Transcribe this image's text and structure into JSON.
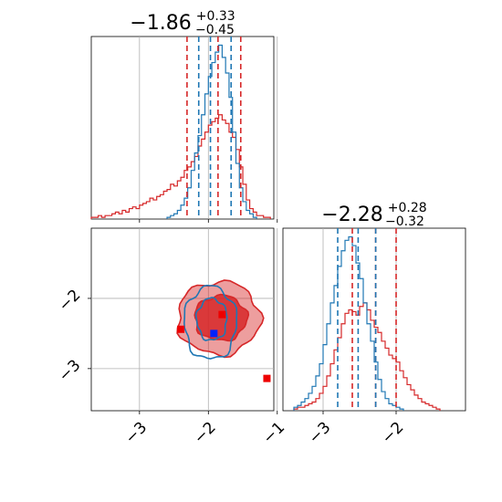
{
  "chart_data": [
    {
      "type": "histogram",
      "panel": "top-left",
      "title": {
        "value": "−1.86",
        "plus": "+0.33",
        "minus": "−0.45"
      },
      "xlim": [
        -3.7,
        -1.05
      ],
      "grid": true,
      "colors": {
        "red": "#d62728",
        "blue": "#1f77b4"
      },
      "vlines": {
        "red": [
          -2.31,
          -1.86,
          -1.53
        ],
        "blue": [
          -2.14,
          -1.97,
          -1.67
        ]
      },
      "series": [
        {
          "color": "red",
          "bins": [
            -3.7,
            -3.65,
            -3.6,
            -3.55,
            -3.5,
            -3.45,
            -3.4,
            -3.35,
            -3.3,
            -3.25,
            -3.2,
            -3.15,
            -3.1,
            -3.05,
            -3.0,
            -2.95,
            -2.9,
            -2.85,
            -2.8,
            -2.75,
            -2.7,
            -2.65,
            -2.6,
            -2.55,
            -2.5,
            -2.45,
            -2.4,
            -2.35,
            -2.3,
            -2.25,
            -2.2,
            -2.15,
            -2.1,
            -2.05,
            -2.0,
            -1.95,
            -1.9,
            -1.85,
            -1.8,
            -1.75,
            -1.7,
            -1.65,
            -1.6,
            -1.55,
            -1.5,
            -1.45,
            -1.4,
            -1.35,
            -1.3,
            -1.25,
            -1.2,
            -1.15,
            -1.1
          ],
          "counts": [
            0.01,
            0.01,
            0.02,
            0.01,
            0.02,
            0.02,
            0.03,
            0.04,
            0.03,
            0.05,
            0.04,
            0.06,
            0.07,
            0.06,
            0.08,
            0.09,
            0.1,
            0.12,
            0.11,
            0.13,
            0.14,
            0.16,
            0.17,
            0.2,
            0.19,
            0.22,
            0.24,
            0.28,
            0.3,
            0.33,
            0.36,
            0.42,
            0.46,
            0.5,
            0.54,
            0.56,
            0.58,
            0.6,
            0.57,
            0.55,
            0.5,
            0.47,
            0.4,
            0.3,
            0.2,
            0.11,
            0.06,
            0.04,
            0.02,
            0.02,
            0.01,
            0.01
          ]
        },
        {
          "color": "blue",
          "bins": [
            -2.6,
            -2.55,
            -2.5,
            -2.45,
            -2.4,
            -2.35,
            -2.3,
            -2.25,
            -2.2,
            -2.15,
            -2.1,
            -2.05,
            -2.0,
            -1.95,
            -1.9,
            -1.85,
            -1.8,
            -1.75,
            -1.7,
            -1.65,
            -1.6,
            -1.55,
            -1.5,
            -1.45,
            -1.4,
            -1.35,
            -1.3
          ],
          "counts": [
            0.01,
            0.02,
            0.03,
            0.05,
            0.08,
            0.12,
            0.18,
            0.28,
            0.38,
            0.48,
            0.6,
            0.72,
            0.82,
            0.9,
            0.96,
            1.0,
            0.93,
            0.84,
            0.7,
            0.5,
            0.32,
            0.18,
            0.1,
            0.05,
            0.03,
            0.01
          ]
        }
      ]
    },
    {
      "type": "contour",
      "panel": "bottom-left",
      "xlim": [
        -3.7,
        -1.05
      ],
      "ylim": [
        -3.6,
        -1.0
      ],
      "xticks": [
        -3,
        -2,
        -1
      ],
      "yticks": [
        -2,
        -3
      ],
      "grid": true,
      "contours": [
        {
          "color": "red",
          "filled": true,
          "level": "outer",
          "cx": -1.85,
          "cy": -2.28,
          "rx": 0.6,
          "ry": 0.52
        },
        {
          "color": "red",
          "filled": true,
          "level": "inner",
          "cx": -1.82,
          "cy": -2.28,
          "rx": 0.38,
          "ry": 0.32
        },
        {
          "color": "blue",
          "filled": false,
          "level": "outer",
          "cx": -1.97,
          "cy": -2.35,
          "rx": 0.38,
          "ry": 0.52
        },
        {
          "color": "blue",
          "filled": false,
          "level": "inner",
          "cx": -1.95,
          "cy": -2.3,
          "rx": 0.22,
          "ry": 0.3
        }
      ],
      "points": [
        {
          "color": "red",
          "x": -2.4,
          "y": -2.44
        },
        {
          "color": "red",
          "x": -1.8,
          "y": -2.23
        },
        {
          "color": "red",
          "x": -1.15,
          "y": -3.14
        },
        {
          "color": "blue",
          "x": -1.92,
          "y": -2.5
        }
      ]
    },
    {
      "type": "histogram",
      "panel": "bottom-right",
      "title": {
        "value": "−2.28",
        "plus": "+0.28",
        "minus": "−0.32"
      },
      "xlim": [
        -3.55,
        -1.05
      ],
      "xticks": [
        -3,
        -2
      ],
      "grid": true,
      "vlines": {
        "red": [
          -2.6,
          -2.28,
          -2.0
        ],
        "blue": [
          -2.8,
          -2.52,
          -2.28
        ]
      },
      "series": [
        {
          "color": "red",
          "bins": [
            -3.4,
            -3.35,
            -3.3,
            -3.25,
            -3.2,
            -3.15,
            -3.1,
            -3.05,
            -3.0,
            -2.95,
            -2.9,
            -2.85,
            -2.8,
            -2.75,
            -2.7,
            -2.65,
            -2.6,
            -2.55,
            -2.5,
            -2.45,
            -2.4,
            -2.35,
            -2.3,
            -2.25,
            -2.2,
            -2.15,
            -2.1,
            -2.05,
            -2.0,
            -1.95,
            -1.9,
            -1.85,
            -1.8,
            -1.75,
            -1.7,
            -1.65,
            -1.6,
            -1.55,
            -1.5,
            -1.45,
            -1.4
          ],
          "counts": [
            0.01,
            0.02,
            0.02,
            0.03,
            0.04,
            0.05,
            0.07,
            0.1,
            0.14,
            0.2,
            0.27,
            0.35,
            0.42,
            0.5,
            0.56,
            0.58,
            0.57,
            0.55,
            0.6,
            0.62,
            0.58,
            0.52,
            0.48,
            0.45,
            0.4,
            0.36,
            0.32,
            0.3,
            0.28,
            0.23,
            0.19,
            0.15,
            0.12,
            0.09,
            0.07,
            0.05,
            0.04,
            0.03,
            0.02,
            0.01
          ]
        },
        {
          "color": "blue",
          "bins": [
            -3.4,
            -3.35,
            -3.3,
            -3.25,
            -3.2,
            -3.15,
            -3.1,
            -3.05,
            -3.0,
            -2.95,
            -2.9,
            -2.85,
            -2.8,
            -2.75,
            -2.7,
            -2.65,
            -2.6,
            -2.55,
            -2.5,
            -2.45,
            -2.4,
            -2.35,
            -2.3,
            -2.25,
            -2.2,
            -2.15,
            -2.1,
            -2.05,
            -2.0,
            -1.95,
            -1.9
          ],
          "counts": [
            0.02,
            0.03,
            0.05,
            0.07,
            0.1,
            0.14,
            0.2,
            0.27,
            0.38,
            0.5,
            0.62,
            0.72,
            0.83,
            0.92,
            0.98,
            1.0,
            0.95,
            0.85,
            0.76,
            0.62,
            0.5,
            0.4,
            0.28,
            0.18,
            0.11,
            0.07,
            0.04,
            0.03,
            0.02,
            0.01
          ]
        }
      ]
    }
  ]
}
